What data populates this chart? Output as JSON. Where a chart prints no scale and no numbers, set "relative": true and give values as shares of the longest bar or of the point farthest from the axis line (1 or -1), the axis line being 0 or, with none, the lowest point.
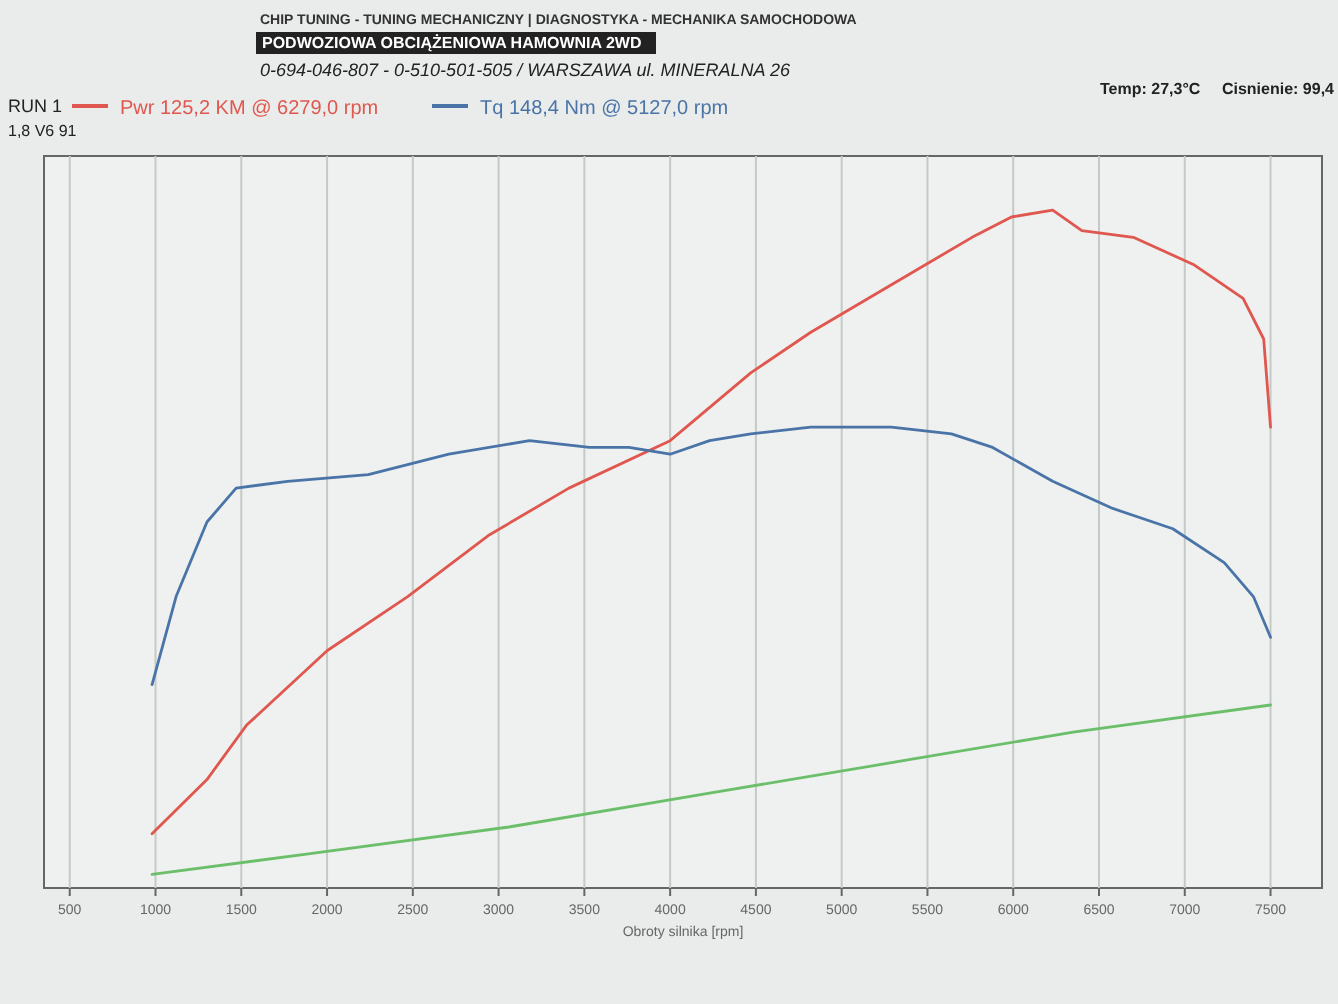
{
  "chart_data": {
    "type": "line",
    "title": "PODWOZIOWA OBCIĄŻENIOWA HAMOWNIA 2WD",
    "subtitle": "CHIP TUNING - TUNING MECHANICZNY | DIAGNOSTYKA - MECHANIKA SAMOCHODOWA",
    "annotations": [
      "0-694-046-807 - 0-510-501-505 / WARSZAWA ul. MINERALNA 26",
      "RUN 1",
      "1,8 V6 91",
      "Temp: 27,3°C",
      "Cisnienie: 99,4"
    ],
    "xlabel": "Obroty silnika [rpm]",
    "relative": true,
    "grid": "x",
    "legend": "top left",
    "xlim": [
      350,
      7800
    ],
    "xticks": [
      500,
      1000,
      1500,
      2000,
      2500,
      3000,
      3500,
      4000,
      4500,
      5000,
      5500,
      6000,
      6500,
      7000,
      7500
    ],
    "series": [
      {
        "name": "Pwr 125,2 KM @ 6279,0 rpm",
        "color": "#e0574f",
        "x": [
          980,
          1300,
          1530,
          2000,
          2470,
          2940,
          3410,
          4000,
          4470,
          4820,
          5290,
          5760,
          5990,
          6230,
          6400,
          6700,
          7050,
          7340,
          7460,
          7500
        ],
        "values": [
          0.08,
          0.16,
          0.24,
          0.35,
          0.43,
          0.52,
          0.59,
          0.66,
          0.76,
          0.82,
          0.89,
          0.96,
          0.99,
          1.0,
          0.97,
          0.96,
          0.92,
          0.87,
          0.81,
          0.68
        ]
      },
      {
        "name": "Tq 148,4 Nm @ 5127,0 rpm",
        "color": "#4a74a8",
        "x": [
          980,
          1120,
          1300,
          1470,
          1770,
          2240,
          2710,
          3180,
          3530,
          3760,
          4000,
          4230,
          4470,
          4820,
          5290,
          5640,
          5880,
          6230,
          6580,
          6930,
          7230,
          7400,
          7500
        ],
        "values": [
          0.3,
          0.43,
          0.54,
          0.59,
          0.6,
          0.61,
          0.64,
          0.66,
          0.65,
          0.65,
          0.64,
          0.66,
          0.67,
          0.68,
          0.68,
          0.67,
          0.65,
          0.6,
          0.56,
          0.53,
          0.48,
          0.43,
          0.37
        ]
      },
      {
        "color": "#6cbf6a",
        "x": [
          980,
          1880,
          3060,
          4230,
          5410,
          6350,
          7500
        ],
        "values": [
          0.02,
          0.05,
          0.09,
          0.14,
          0.19,
          0.23,
          0.27
        ]
      }
    ]
  }
}
